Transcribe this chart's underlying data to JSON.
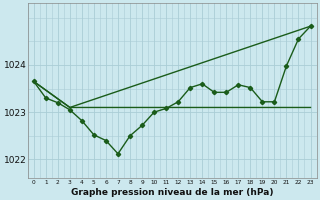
{
  "title": "Graphe pression niveau de la mer (hPa)",
  "bg_color": "#cce8ee",
  "grid_color": "#aacdd6",
  "line_color": "#1a5c1a",
  "xlim": [
    -0.5,
    23.5
  ],
  "ylim": [
    1021.6,
    1025.3
  ],
  "yticks": [
    1022,
    1023,
    1024
  ],
  "xtick_labels": [
    "0",
    "1",
    "2",
    "3",
    "4",
    "5",
    "6",
    "7",
    "8",
    "9",
    "10",
    "11",
    "12",
    "13",
    "14",
    "15",
    "16",
    "17",
    "18",
    "19",
    "20",
    "21",
    "22",
    "23"
  ],
  "curve1": [
    1023.65,
    1023.3,
    1023.2,
    1023.05,
    1022.82,
    1022.52,
    1022.4,
    1022.12,
    1022.5,
    1022.72,
    1023.0,
    1023.08,
    1023.22,
    1023.52,
    1023.6,
    1023.42,
    1023.42,
    1023.58,
    1023.52,
    1023.22,
    1023.22,
    1023.98,
    1024.55,
    1024.82
  ],
  "curve2_x": [
    0,
    3,
    23
  ],
  "curve2_y": [
    1023.65,
    1023.1,
    1023.1
  ],
  "curve3_x": [
    0,
    3,
    23
  ],
  "curve3_y": [
    1023.65,
    1023.1,
    1024.82
  ]
}
